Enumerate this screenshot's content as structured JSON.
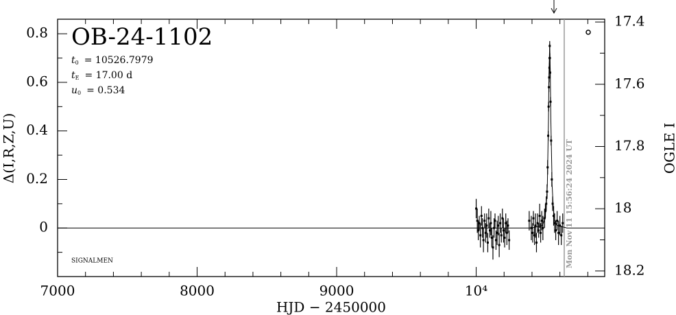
{
  "chart_data": {
    "type": "errorbar",
    "title": "OB-24-1102",
    "params": [
      {
        "symbol": "t",
        "sub": "0",
        "text": "= 10526.7979"
      },
      {
        "symbol": "t",
        "sub": "E",
        "text": "= 17.00 d"
      },
      {
        "symbol": "u",
        "sub": "0",
        "text": "= 0.534"
      }
    ],
    "note": "SIGNALMEN",
    "x_label": "HJD − 2450000",
    "y_label": "Δ(I,R,Z,U)",
    "y2_label": "OGLE I",
    "xlim": [
      7000,
      10921
    ],
    "xticks": [
      7000,
      8000,
      9000,
      {
        "value": 10000,
        "label": "10⁴"
      }
    ],
    "xminorticks": [
      7200,
      7400,
      7600,
      7800,
      8200,
      8400,
      8600,
      8800,
      9200,
      9400,
      9600,
      9800,
      10200,
      10400,
      10600,
      10800
    ],
    "ylim": [
      -0.2,
      0.86
    ],
    "yticks": [
      0,
      0.2,
      0.4,
      0.6,
      0.8
    ],
    "yminorticks": [
      -0.1,
      0.1,
      0.3,
      0.5,
      0.7
    ],
    "y2lim": [
      18.218,
      17.391
    ],
    "y2ticks": [
      17.4,
      17.6,
      17.8,
      18,
      18.2
    ],
    "y2minorticks": [
      17.5,
      17.7,
      17.9,
      18.1
    ],
    "vline": {
      "x": 10631,
      "label": "Mon Nov 11 15:56:24 2024 UT",
      "color": "#999999"
    },
    "series": [
      {
        "color": "#000000",
        "x": [
          10000,
          10008,
          10015,
          10022,
          10030,
          10038,
          10045,
          10052,
          10060,
          10068,
          10075,
          10083,
          10090,
          10098,
          10105,
          10112,
          10120,
          10128,
          10135,
          10142,
          10150,
          10158,
          10165,
          10172,
          10180,
          10188,
          10196,
          10204,
          10212,
          10220,
          10228,
          10236,
          10380,
          10395,
          10405,
          10410,
          10418,
          10425,
          10432,
          10440,
          10448,
          10455,
          10462,
          10470,
          10478,
          10490,
          10496,
          10502,
          10508,
          10512,
          10516,
          10519,
          10521,
          10523,
          10525,
          10526,
          10527,
          10528,
          10530,
          10533,
          10537,
          10542,
          10548,
          10555,
          10562,
          10570,
          10580,
          10590,
          10600,
          10610,
          10620
        ],
        "values": [
          0.08,
          0.03,
          -0.01,
          0.02,
          -0.03,
          0.05,
          0.0,
          -0.05,
          0.03,
          -0.02,
          0.01,
          -0.06,
          0.04,
          -0.01,
          0.02,
          -0.04,
          -0.08,
          0.0,
          0.03,
          -0.05,
          -0.02,
          0.01,
          -0.07,
          0.02,
          -0.03,
          0.04,
          -0.01,
          -0.04,
          0.02,
          -0.02,
          0.01,
          -0.05,
          0.03,
          0.0,
          -0.02,
          0.04,
          -0.03,
          0.01,
          -0.06,
          0.02,
          -0.01,
          0.05,
          -0.02,
          0.03,
          0.0,
          0.04,
          0.07,
          0.1,
          0.15,
          0.25,
          0.38,
          0.5,
          0.58,
          0.62,
          0.66,
          0.7,
          0.75,
          0.7,
          0.64,
          0.52,
          0.36,
          0.2,
          0.1,
          0.05,
          0.02,
          -0.01,
          0.03,
          -0.02,
          0.01,
          -0.03,
          0.02
        ],
        "errors": [
          0.04,
          0.05,
          0.04,
          0.03,
          0.05,
          0.04,
          0.04,
          0.05,
          0.03,
          0.04,
          0.05,
          0.04,
          0.04,
          0.03,
          0.05,
          0.04,
          0.05,
          0.04,
          0.03,
          0.04,
          0.05,
          0.04,
          0.05,
          0.04,
          0.03,
          0.04,
          0.05,
          0.04,
          0.04,
          0.05,
          0.03,
          0.04,
          0.04,
          0.05,
          0.04,
          0.03,
          0.04,
          0.05,
          0.04,
          0.04,
          0.03,
          0.05,
          0.04,
          0.04,
          0.05,
          0.04,
          0.03,
          0.03,
          0.03,
          0.03,
          0.02,
          0.02,
          0.02,
          0.02,
          0.02,
          0.02,
          0.02,
          0.02,
          0.02,
          0.02,
          0.02,
          0.03,
          0.03,
          0.04,
          0.04,
          0.04,
          0.04,
          0.05,
          0.04,
          0.04,
          0.04
        ]
      },
      {
        "color": "#000000",
        "x": [
          7000,
          10400,
          10476,
          10492,
          10501,
          10510,
          10518,
          10522,
          10527,
          10531,
          10535,
          10544,
          10553,
          10561,
          10578,
          10650,
          10921
        ],
        "values": [
          0,
          0,
          0.011,
          0.039,
          0.081,
          0.178,
          0.446,
          0.646,
          0.76,
          0.646,
          0.446,
          0.178,
          0.081,
          0.039,
          0.011,
          0,
          0
        ]
      }
    ]
  }
}
